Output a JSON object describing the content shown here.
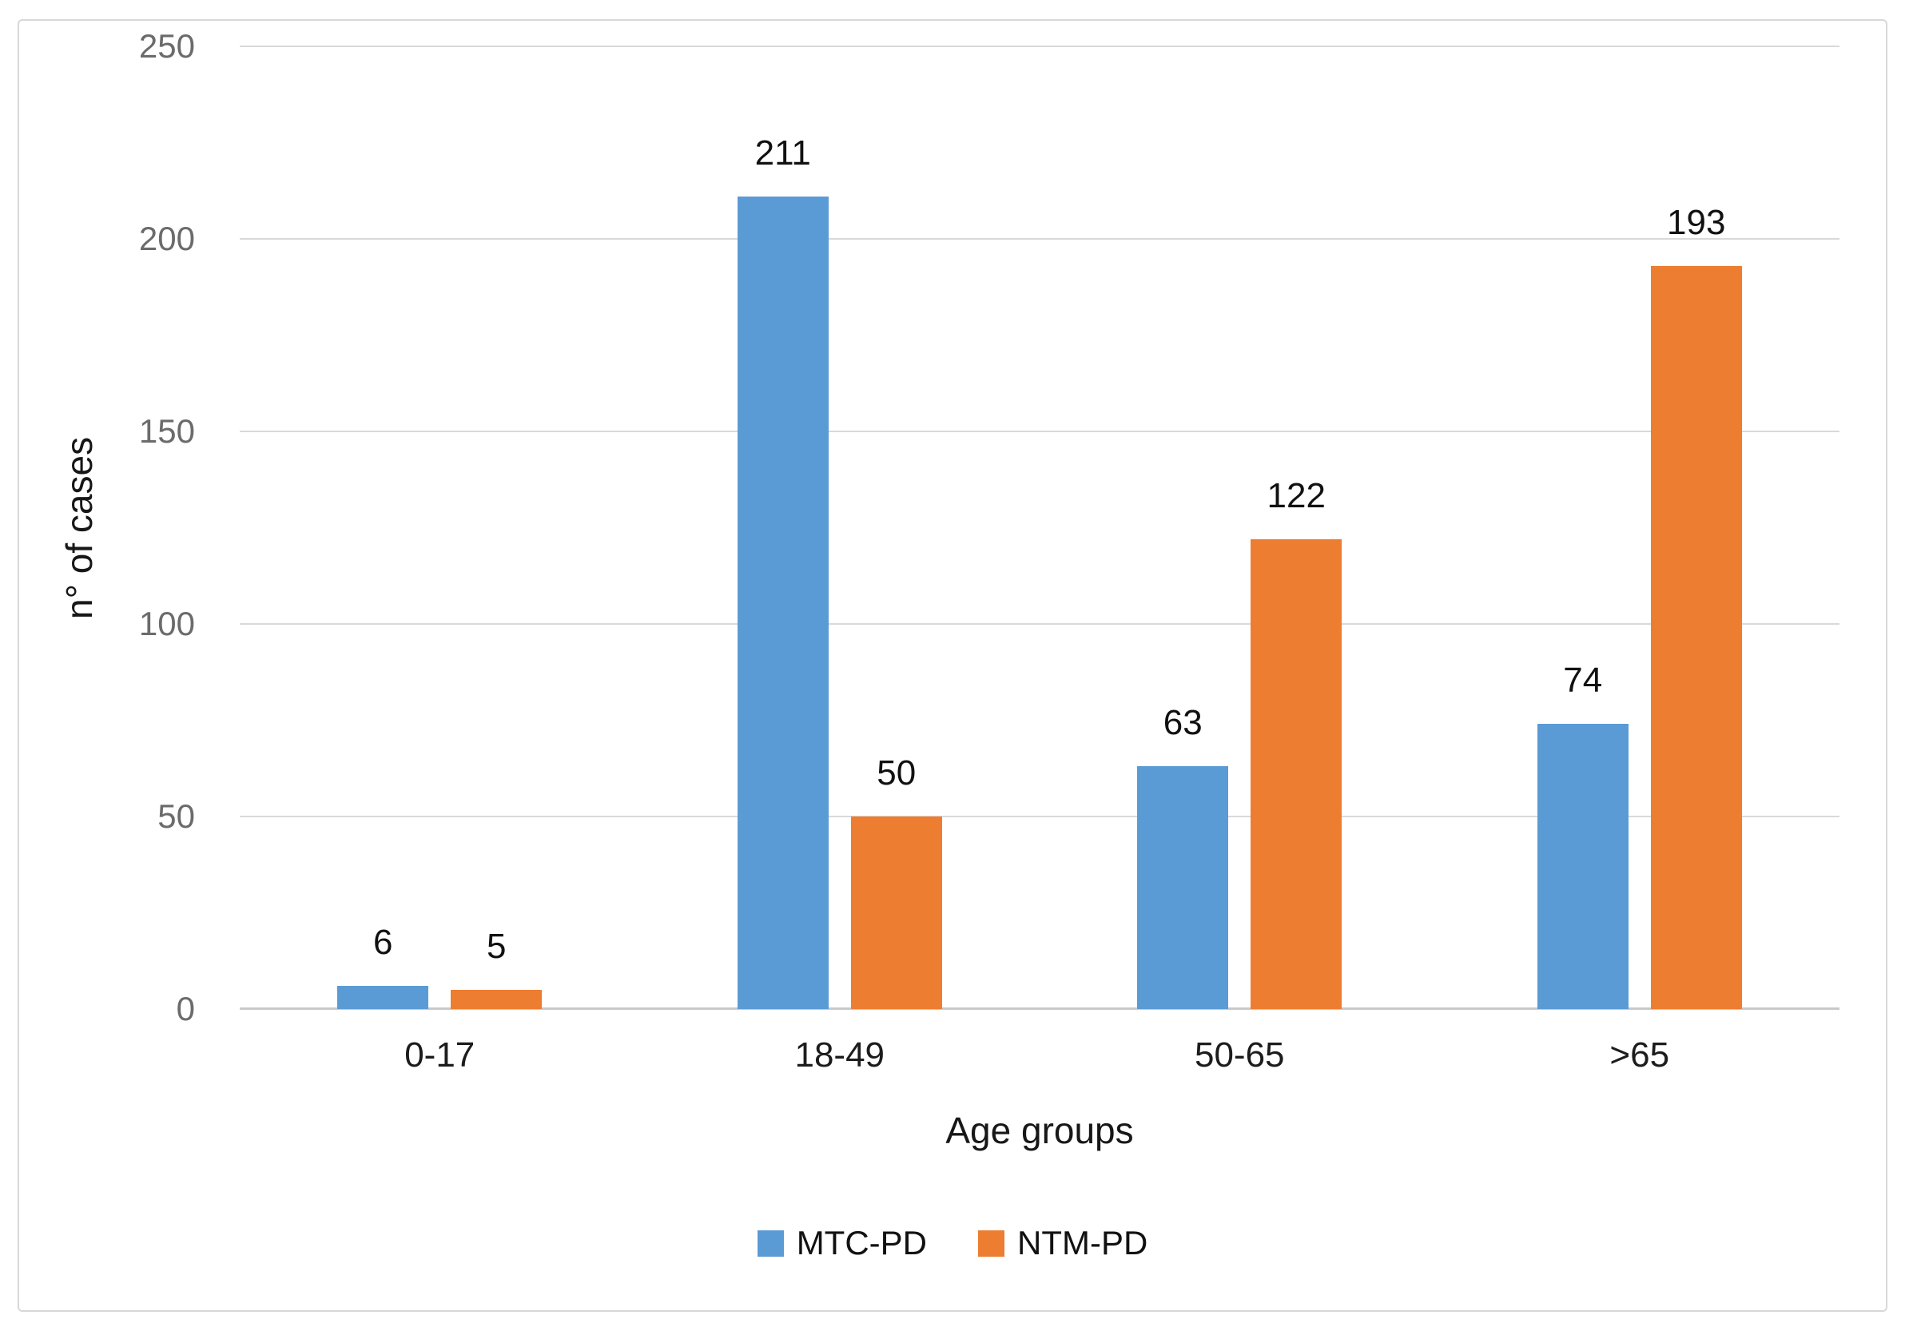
{
  "chart_data": {
    "type": "bar",
    "categories": [
      "0-17",
      "18-49",
      "50-65",
      ">65"
    ],
    "series": [
      {
        "name": "MTC-PD",
        "color": "#5B9BD5",
        "values": [
          6,
          211,
          63,
          74
        ]
      },
      {
        "name": "NTM-PD",
        "color": "#ED7D31",
        "values": [
          5,
          50,
          122,
          193
        ]
      }
    ],
    "title": "",
    "xlabel": "Age groups",
    "ylabel": "n° of cases",
    "ylim": [
      0,
      250
    ],
    "yticks": [
      0,
      50,
      100,
      150,
      200,
      250
    ],
    "grid": "horizontal",
    "gridline_color": "#d9d9d9",
    "legend_position": "bottom",
    "data_labels": true
  }
}
